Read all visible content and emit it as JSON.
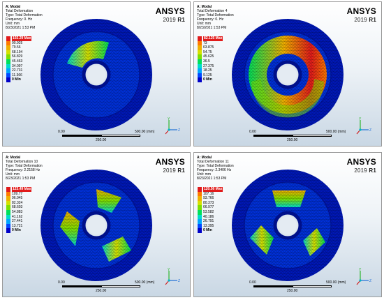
{
  "logo": {
    "brand": "ANSYS",
    "year": "2019",
    "release": "R1"
  },
  "scale": {
    "left": "0.00",
    "right": "500.00 (mm)",
    "mid": "250.00"
  },
  "triad": {
    "y": "Y",
    "z": "Z"
  },
  "colors": {
    "legend": [
      "#e11b1b",
      "#ff7a00",
      "#f0b000",
      "#d6e000",
      "#7fe000",
      "#00e05a",
      "#00dcc8",
      "#00a6ff",
      "#0048ff",
      "#0000c8"
    ]
  },
  "panels": [
    {
      "title": "A: Modal",
      "result": "Total Deformation",
      "type": "Type: Total Deformation",
      "freq": "Frequency: 0. Hz",
      "unit": "Unit: mm",
      "date": "8/23/2021 1:53 PM",
      "legend": [
        "102.29 Max",
        "90.925",
        "79.56",
        "68.194",
        "56.829",
        "45.463",
        "34.097",
        "22.731",
        "11.366",
        "0 Min"
      ]
    },
    {
      "title": "A: Modal",
      "result": "Total Deformation 4",
      "type": "Type: Total Deformation",
      "freq": "Frequency: 0. Hz",
      "unit": "Unit: mm",
      "date": "8/23/2021 1:53 PM",
      "legend": [
        "82.125 Max",
        "73",
        "63.875",
        "54.75",
        "45.625",
        "36.5",
        "27.375",
        "18.25",
        "9.125",
        "0 Min"
      ]
    },
    {
      "title": "A: Modal",
      "result": "Total Deformation 10",
      "type": "Type: Total Deformation",
      "freq": "Frequency: 2.2158 Hz",
      "unit": "Unit: mm",
      "date": "8/23/2021 1:53 PM",
      "legend": [
        "123.49 Max",
        "109.77",
        "96.045",
        "82.324",
        "68.603",
        "54.883",
        "41.162",
        "27.441",
        "13.721",
        "0 Min"
      ]
    },
    {
      "title": "A: Modal",
      "result": "Total Deformation 11",
      "type": "Type: Total Deformation",
      "freq": "Frequency: 2.3406 Hz",
      "unit": "Unit: mm",
      "date": "8/23/2021 1:53 PM",
      "legend": [
        "120.56 Max",
        "107.16",
        "93.766",
        "80.373",
        "66.977",
        "53.582",
        "40.186",
        "26.791",
        "13.395",
        "0 Min"
      ]
    }
  ]
}
